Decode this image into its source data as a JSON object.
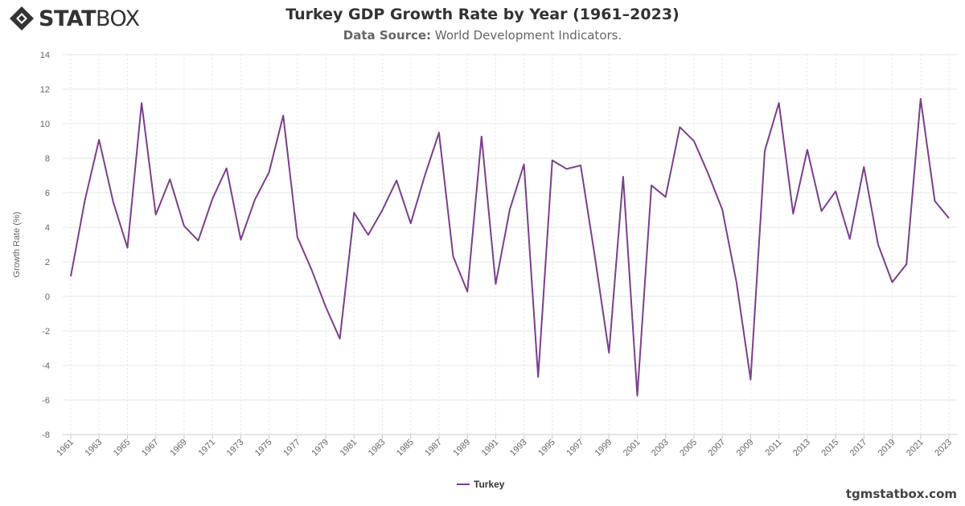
{
  "brand": {
    "logo_bold": "STAT",
    "logo_light": "BOX",
    "site": "tgmstatbox.com"
  },
  "header": {
    "title": "Turkey GDP Growth Rate by Year (1961–2023)",
    "source_label": "Data Source:",
    "source_value": "World Development Indicators."
  },
  "colors": {
    "series": "#7b3f8c",
    "grid": "#e6e6e6",
    "axis_text": "#666666",
    "logo": "#333333"
  },
  "chart_data": {
    "type": "line",
    "title": "Turkey GDP Growth Rate by Year (1961–2023)",
    "ylabel": "Growth Rate (%)",
    "xlabel": "",
    "ylim": [
      -8,
      14
    ],
    "yticks": [
      -8,
      -6,
      -4,
      -2,
      0,
      2,
      4,
      6,
      8,
      10,
      12,
      14
    ],
    "xlim": [
      1961,
      2023
    ],
    "xticks": [
      1961,
      1963,
      1965,
      1967,
      1969,
      1971,
      1973,
      1975,
      1977,
      1979,
      1981,
      1983,
      1985,
      1987,
      1989,
      1991,
      1993,
      1995,
      1997,
      1999,
      2001,
      2003,
      2005,
      2007,
      2009,
      2011,
      2013,
      2015,
      2017,
      2019,
      2021,
      2023
    ],
    "grid": true,
    "legend_position": "bottom-center",
    "series": [
      {
        "name": "Turkey",
        "x": [
          1961,
          1962,
          1963,
          1964,
          1965,
          1966,
          1967,
          1968,
          1969,
          1970,
          1971,
          1972,
          1973,
          1974,
          1975,
          1976,
          1977,
          1978,
          1979,
          1980,
          1981,
          1982,
          1983,
          1984,
          1985,
          1986,
          1987,
          1988,
          1989,
          1990,
          1991,
          1992,
          1993,
          1994,
          1995,
          1996,
          1997,
          1998,
          1999,
          2000,
          2001,
          2002,
          2003,
          2004,
          2005,
          2006,
          2007,
          2008,
          2009,
          2010,
          2011,
          2012,
          2013,
          2014,
          2015,
          2016,
          2017,
          2018,
          2019,
          2020,
          2021,
          2022,
          2023
        ],
        "values": [
          1.16,
          5.57,
          9.07,
          5.46,
          2.82,
          11.2,
          4.73,
          6.78,
          4.08,
          3.23,
          5.64,
          7.42,
          3.28,
          5.61,
          7.19,
          10.47,
          3.43,
          1.55,
          -0.6,
          -2.45,
          4.84,
          3.56,
          5.0,
          6.71,
          4.23,
          7.0,
          9.48,
          2.31,
          0.28,
          9.26,
          0.72,
          5.04,
          7.65,
          -4.67,
          7.88,
          7.38,
          7.58,
          2.31,
          -3.27,
          6.93,
          -5.75,
          6.43,
          5.76,
          9.8,
          8.99,
          7.11,
          5.03,
          0.82,
          -4.82,
          8.43,
          11.2,
          4.79,
          8.49,
          4.94,
          6.08,
          3.32,
          7.5,
          3.01,
          0.82,
          1.86,
          11.44,
          5.53,
          4.52
        ]
      }
    ]
  }
}
